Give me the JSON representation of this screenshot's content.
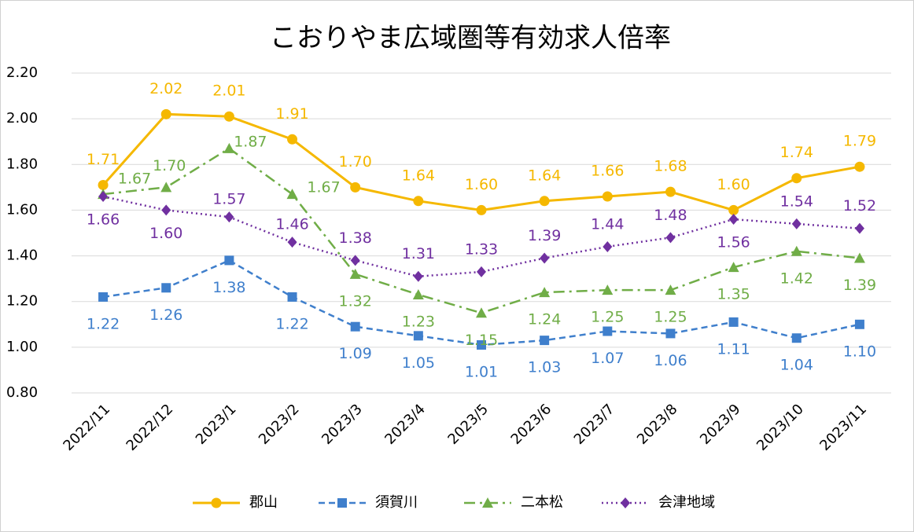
{
  "chart_data": {
    "type": "line",
    "title": "こおりやま広域圏等有効求人倍率",
    "categories": [
      "2022/11",
      "2022/12",
      "2023/1",
      "2023/2",
      "2023/3",
      "2023/4",
      "2023/5",
      "2023/6",
      "2023/7",
      "2023/8",
      "2023/9",
      "2023/10",
      "2023/11"
    ],
    "ylim": [
      0.8,
      2.2
    ],
    "yticks": [
      {
        "value": 0.8,
        "label": "0.80"
      },
      {
        "value": 1.0,
        "label": "1.00"
      },
      {
        "value": 1.2,
        "label": "1.20"
      },
      {
        "value": 1.4,
        "label": "1.40"
      },
      {
        "value": 1.6,
        "label": "1.60"
      },
      {
        "value": 1.8,
        "label": "1.80"
      },
      {
        "value": 2.0,
        "label": "2.00"
      },
      {
        "value": 2.2,
        "label": "2.20"
      }
    ],
    "grid": true,
    "legend": "bottom",
    "series": [
      {
        "name": "郡山",
        "color": "#f5b800",
        "values": [
          1.71,
          2.02,
          2.01,
          1.91,
          1.7,
          1.64,
          1.6,
          1.64,
          1.66,
          1.68,
          1.6,
          1.74,
          1.79
        ],
        "value_labels": [
          "1.71",
          "2.02",
          "2.01",
          "1.91",
          "1.70",
          "1.64",
          "1.60",
          "1.64",
          "1.66",
          "1.68",
          "1.60",
          "1.74",
          "1.79"
        ]
      },
      {
        "name": "須賀川",
        "color": "#3f7fcc",
        "values": [
          1.22,
          1.26,
          1.38,
          1.22,
          1.09,
          1.05,
          1.01,
          1.03,
          1.07,
          1.06,
          1.11,
          1.04,
          1.1
        ],
        "value_labels": [
          "1.22",
          "1.26",
          "1.38",
          "1.22",
          "1.09",
          "1.05",
          "1.01",
          "1.03",
          "1.07",
          "1.06",
          "1.11",
          "1.04",
          "1.10"
        ]
      },
      {
        "name": "二本松",
        "color": "#70ad47",
        "values": [
          1.67,
          1.7,
          1.87,
          1.67,
          1.32,
          1.23,
          1.15,
          1.24,
          1.25,
          1.25,
          1.35,
          1.42,
          1.39
        ],
        "value_labels": [
          "1.67",
          "1.70",
          "1.87",
          "1.67",
          "1.32",
          "1.23",
          "1.15",
          "1.24",
          "1.25",
          "1.25",
          "1.35",
          "1.42",
          "1.39"
        ]
      },
      {
        "name": "会津地域",
        "color": "#7030a0",
        "values": [
          1.66,
          1.6,
          1.57,
          1.46,
          1.38,
          1.31,
          1.33,
          1.39,
          1.44,
          1.48,
          1.56,
          1.54,
          1.52
        ],
        "value_labels": [
          "1.66",
          "1.60",
          "1.57",
          "1.46",
          "1.38",
          "1.31",
          "1.33",
          "1.39",
          "1.44",
          "1.48",
          "1.56",
          "1.54",
          "1.52"
        ]
      }
    ]
  }
}
